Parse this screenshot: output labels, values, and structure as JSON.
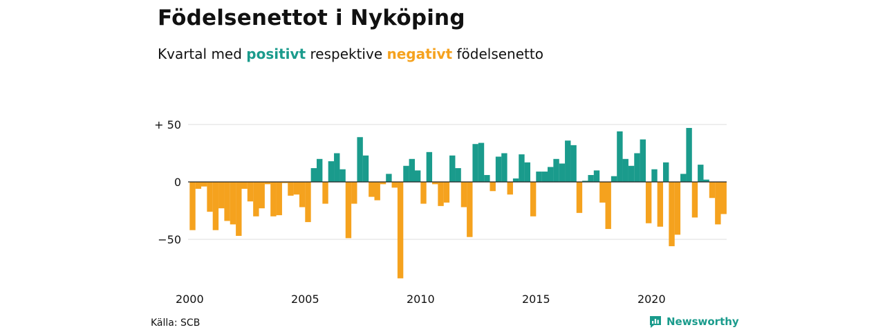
{
  "title": "Födelsenettot i Nyköping",
  "subtitle": {
    "prefix": "Kvartal med",
    "positive_word": "positivt",
    "middle": "respektive",
    "negative_word": "negativt",
    "suffix": "födelsenetto"
  },
  "colors": {
    "positive": "#1a9b8c",
    "negative": "#f5a21e",
    "grid": "#dddddd",
    "zero_line": "#222222"
  },
  "source": "Källa: SCB",
  "brand": {
    "name": "Newsworthy",
    "icon": "newsworthy-chart-icon"
  },
  "chart_data": {
    "type": "bar",
    "title": "Födelsenettot i Nyköping",
    "xlabel": "",
    "ylabel": "",
    "x_start_year": 2000,
    "periods_per_year": 4,
    "x_ticks": [
      2000,
      2005,
      2010,
      2015,
      2020
    ],
    "y_ticks": [
      {
        "value": 50,
        "label": "+ 50"
      },
      {
        "value": 0,
        "label": "0"
      },
      {
        "value": -50,
        "label": "−50"
      }
    ],
    "ylim": [
      -85,
      55
    ],
    "grid": true,
    "values": [
      -42,
      -6,
      -4,
      -26,
      -42,
      -23,
      -34,
      -37,
      -47,
      -6,
      -17,
      -30,
      -23,
      -2,
      -30,
      -29,
      -1,
      -12,
      -11,
      -22,
      -35,
      12,
      20,
      -19,
      18,
      25,
      11,
      -49,
      -19,
      39,
      23,
      -13,
      -16,
      -2,
      7,
      -5,
      -84,
      14,
      20,
      10,
      -19,
      26,
      -2,
      -21,
      -18,
      23,
      12,
      -22,
      -48,
      33,
      34,
      6,
      -8,
      22,
      25,
      -11,
      3,
      24,
      17,
      -30,
      9,
      9,
      13,
      20,
      16,
      36,
      32,
      -27,
      1,
      6,
      10,
      -18,
      -41,
      5,
      44,
      20,
      14,
      25,
      37,
      -36,
      11,
      -39,
      17,
      -56,
      -46,
      7,
      47,
      -31,
      15,
      2,
      -14,
      -37,
      -28
    ]
  }
}
